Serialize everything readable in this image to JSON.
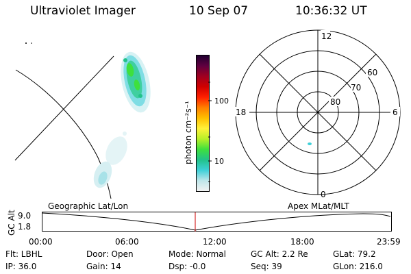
{
  "header": {
    "title": "Ultraviolet Imager",
    "date": "10 Sep 07",
    "time": "10:36:32 UT"
  },
  "colorbar": {
    "unit_label": "photon cm⁻²s⁻¹",
    "ticks": [
      "100",
      "10"
    ]
  },
  "polar": {
    "lat_labels": [
      "60",
      "70",
      "80"
    ],
    "mlt_labels": {
      "top": "12",
      "left": "18",
      "right": "6",
      "bottom": "0"
    }
  },
  "timeline": {
    "left_label": "Geographic Lat/Lon",
    "right_label": "Apex MLat/MLT",
    "y_axis_label": "GC Alt",
    "y_ticks": [
      "9.0",
      "1.8"
    ],
    "x_ticks": [
      "00:00",
      "06:00",
      "12:00",
      "18:00",
      "23:59"
    ],
    "cursor_time": "10:36:32"
  },
  "info": {
    "flt": "Flt: LBHL",
    "ip": "IP: 36.0",
    "door": "Door: Open",
    "gain": "Gain: 14",
    "mode": "Mode: Normal",
    "dsp": "Dsp:   -0.0",
    "gc_alt": "GC Alt: 2.2 Re",
    "seq": "Seq: 39",
    "glat": "GLat:  79.2",
    "glon": "GLon: 216.0"
  },
  "colors": {
    "cursor": "#cc0000",
    "colorbar_stops": [
      "#f2f2f2",
      "#bfe6ea",
      "#3fd0d8",
      "#22c28a",
      "#3ee03e",
      "#b8f028",
      "#fff23a",
      "#ffc000",
      "#ff8000",
      "#ff2000",
      "#d00000",
      "#a00020",
      "#600040",
      "#200030"
    ]
  }
}
